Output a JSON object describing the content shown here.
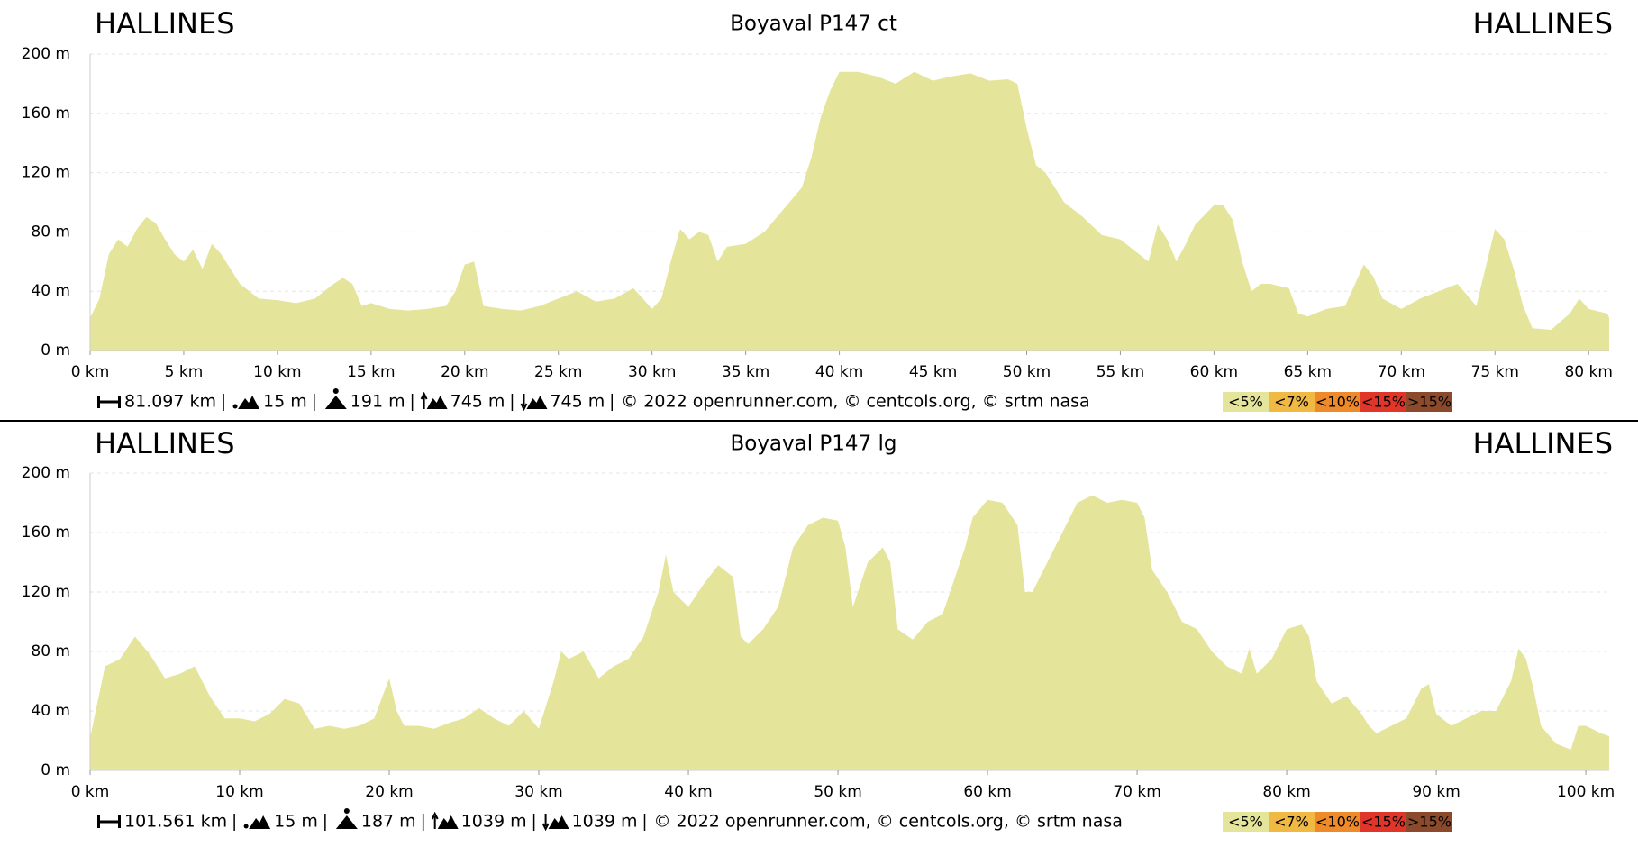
{
  "chart_data": [
    {
      "type": "area",
      "title": "Boyaval P147 ct",
      "start_label": "HALLINES",
      "end_label": "HALLINES",
      "color": "#e4e49a",
      "grid": true,
      "xlim": [
        0,
        81.097
      ],
      "ylim": [
        0,
        200
      ],
      "xticks": [
        {
          "value": 0,
          "label": "0 km"
        },
        {
          "value": 5,
          "label": "5 km"
        },
        {
          "value": 10,
          "label": "10 km"
        },
        {
          "value": 15,
          "label": "15 km"
        },
        {
          "value": 20,
          "label": "20 km"
        },
        {
          "value": 25,
          "label": "25 km"
        },
        {
          "value": 30,
          "label": "30 km"
        },
        {
          "value": 35,
          "label": "35 km"
        },
        {
          "value": 40,
          "label": "40 km"
        },
        {
          "value": 45,
          "label": "45 km"
        },
        {
          "value": 50,
          "label": "50 km"
        },
        {
          "value": 55,
          "label": "55 km"
        },
        {
          "value": 60,
          "label": "60 km"
        },
        {
          "value": 65,
          "label": "65 km"
        },
        {
          "value": 70,
          "label": "70 km"
        },
        {
          "value": 75,
          "label": "75 km"
        },
        {
          "value": 80,
          "label": "80 km"
        }
      ],
      "yticks": [
        {
          "value": 0,
          "label": "0 m"
        },
        {
          "value": 40,
          "label": "40 m"
        },
        {
          "value": 80,
          "label": "80 m"
        },
        {
          "value": 120,
          "label": "120 m"
        },
        {
          "value": 160,
          "label": "160 m"
        },
        {
          "value": 200,
          "label": "200 m"
        }
      ],
      "x": [
        0,
        0.5,
        1,
        1.5,
        2,
        2.5,
        3,
        3.5,
        4,
        4.5,
        5,
        5.5,
        6,
        6.5,
        7,
        8,
        9,
        10,
        11,
        12,
        13,
        13.5,
        14,
        14.5,
        15,
        16,
        17,
        18,
        19,
        19.5,
        20,
        20.5,
        21,
        22,
        23,
        24,
        25,
        26,
        27,
        28,
        29,
        30,
        30.5,
        31,
        31.5,
        32,
        32.5,
        33,
        33.5,
        34,
        35,
        36,
        37,
        38,
        38.5,
        39,
        39.5,
        40,
        41,
        42,
        43,
        44,
        45,
        46,
        47,
        48,
        49,
        49.5,
        50,
        50.5,
        51,
        52,
        53,
        54,
        55,
        56,
        56.5,
        57,
        57.5,
        58,
        58.5,
        59,
        60,
        60.5,
        61,
        61.5,
        62,
        62.5,
        63,
        64,
        64.5,
        65,
        66,
        67,
        68,
        68.5,
        69,
        70,
        71,
        72,
        73,
        74,
        75,
        75.5,
        76,
        76.5,
        77,
        78,
        79,
        79.5,
        80,
        81,
        81.097
      ],
      "values": [
        22,
        35,
        65,
        75,
        70,
        82,
        90,
        86,
        75,
        65,
        60,
        68,
        55,
        72,
        65,
        45,
        35,
        34,
        32,
        35,
        45,
        49,
        45,
        30,
        32,
        28,
        27,
        28,
        30,
        40,
        58,
        60,
        30,
        28,
        27,
        30,
        35,
        40,
        33,
        35,
        42,
        28,
        35,
        60,
        82,
        75,
        80,
        78,
        60,
        70,
        72,
        80,
        95,
        110,
        130,
        157,
        175,
        188,
        188,
        185,
        180,
        188,
        182,
        185,
        187,
        182,
        183,
        180,
        150,
        125,
        120,
        100,
        90,
        78,
        75,
        65,
        60,
        85,
        75,
        60,
        72,
        85,
        98,
        98,
        88,
        60,
        40,
        45,
        45,
        42,
        25,
        23,
        28,
        30,
        58,
        50,
        35,
        28,
        35,
        40,
        45,
        30,
        82,
        75,
        55,
        30,
        15,
        14,
        25,
        35,
        28,
        25,
        22
      ],
      "stats": {
        "distance": "81.097 km",
        "min_elevation": "15 m",
        "max_elevation": "191 m",
        "ascent": "745 m",
        "descent": "745 m",
        "credits": "© 2022 openrunner.com, © centcols.org, © srtm nasa"
      },
      "legend": [
        {
          "label": "<5%",
          "color": "#e4e49a"
        },
        {
          "label": "<7%",
          "color": "#f0b944"
        },
        {
          "label": "<10%",
          "color": "#ee8a2a"
        },
        {
          "label": "<15%",
          "color": "#e0362a"
        },
        {
          "label": ">15%",
          "color": "#8b4a2c"
        }
      ]
    },
    {
      "type": "area",
      "title": "Boyaval P147 lg",
      "start_label": "HALLINES",
      "end_label": "HALLINES",
      "color": "#e4e49a",
      "grid": true,
      "xlim": [
        0,
        101.561
      ],
      "ylim": [
        0,
        200
      ],
      "xticks": [
        {
          "value": 0,
          "label": "0 km"
        },
        {
          "value": 10,
          "label": "10 km"
        },
        {
          "value": 20,
          "label": "20 km"
        },
        {
          "value": 30,
          "label": "30 km"
        },
        {
          "value": 40,
          "label": "40 km"
        },
        {
          "value": 50,
          "label": "50 km"
        },
        {
          "value": 60,
          "label": "60 km"
        },
        {
          "value": 70,
          "label": "70 km"
        },
        {
          "value": 80,
          "label": "80 km"
        },
        {
          "value": 90,
          "label": "90 km"
        },
        {
          "value": 100,
          "label": "100 km"
        }
      ],
      "yticks": [
        {
          "value": 0,
          "label": "0 m"
        },
        {
          "value": 40,
          "label": "40 m"
        },
        {
          "value": 80,
          "label": "80 m"
        },
        {
          "value": 120,
          "label": "120 m"
        },
        {
          "value": 160,
          "label": "160 m"
        },
        {
          "value": 200,
          "label": "200 m"
        }
      ],
      "x": [
        0,
        1,
        2,
        3,
        4,
        5,
        6,
        7,
        8,
        9,
        10,
        11,
        12,
        13,
        14,
        15,
        16,
        17,
        18,
        19,
        20,
        20.5,
        21,
        22,
        23,
        24,
        25,
        26,
        27,
        28,
        29,
        30,
        31,
        31.5,
        32,
        33,
        34,
        35,
        36,
        37,
        38,
        38.5,
        39,
        40,
        41,
        42,
        43,
        43.5,
        44,
        45,
        46,
        47,
        48,
        49,
        50,
        50.5,
        51,
        52,
        53,
        53.5,
        54,
        55,
        56,
        57,
        58,
        58.5,
        59,
        60,
        61,
        62,
        62.5,
        63,
        64,
        65,
        66,
        67,
        68,
        69,
        70,
        70.5,
        71,
        72,
        73,
        74,
        75,
        76,
        77,
        77.5,
        78,
        79,
        80,
        81,
        81.5,
        82,
        83,
        84,
        85,
        85.5,
        86,
        87,
        88,
        89,
        89.5,
        90,
        91,
        92,
        93,
        94,
        95,
        95.5,
        96,
        96.5,
        97,
        98,
        99,
        99.5,
        100,
        101,
        101.561
      ],
      "values": [
        22,
        70,
        75,
        90,
        78,
        62,
        65,
        70,
        50,
        35,
        35,
        33,
        38,
        48,
        45,
        28,
        30,
        28,
        30,
        35,
        62,
        40,
        30,
        30,
        28,
        32,
        35,
        42,
        35,
        30,
        40,
        28,
        60,
        80,
        75,
        80,
        62,
        70,
        75,
        90,
        120,
        145,
        120,
        110,
        125,
        138,
        130,
        90,
        85,
        95,
        110,
        150,
        165,
        170,
        168,
        150,
        110,
        140,
        150,
        140,
        95,
        88,
        100,
        105,
        135,
        150,
        170,
        182,
        180,
        165,
        120,
        120,
        140,
        160,
        180,
        185,
        180,
        182,
        180,
        170,
        135,
        120,
        100,
        95,
        80,
        70,
        65,
        82,
        65,
        75,
        95,
        98,
        90,
        60,
        45,
        50,
        38,
        30,
        25,
        30,
        35,
        55,
        58,
        38,
        30,
        35,
        40,
        40,
        60,
        82,
        75,
        55,
        30,
        18,
        14,
        30,
        30,
        25,
        23
      ],
      "stats": {
        "distance": "101.561 km",
        "min_elevation": "15 m",
        "max_elevation": "187 m",
        "ascent": "1039 m",
        "descent": "1039 m",
        "credits": "© 2022 openrunner.com, © centcols.org, © srtm nasa"
      },
      "legend": [
        {
          "label": "<5%",
          "color": "#e4e49a"
        },
        {
          "label": "<7%",
          "color": "#f0b944"
        },
        {
          "label": "<10%",
          "color": "#ee8a2a"
        },
        {
          "label": "<15%",
          "color": "#e0362a"
        },
        {
          "label": ">15%",
          "color": "#8b4a2c"
        }
      ]
    }
  ]
}
